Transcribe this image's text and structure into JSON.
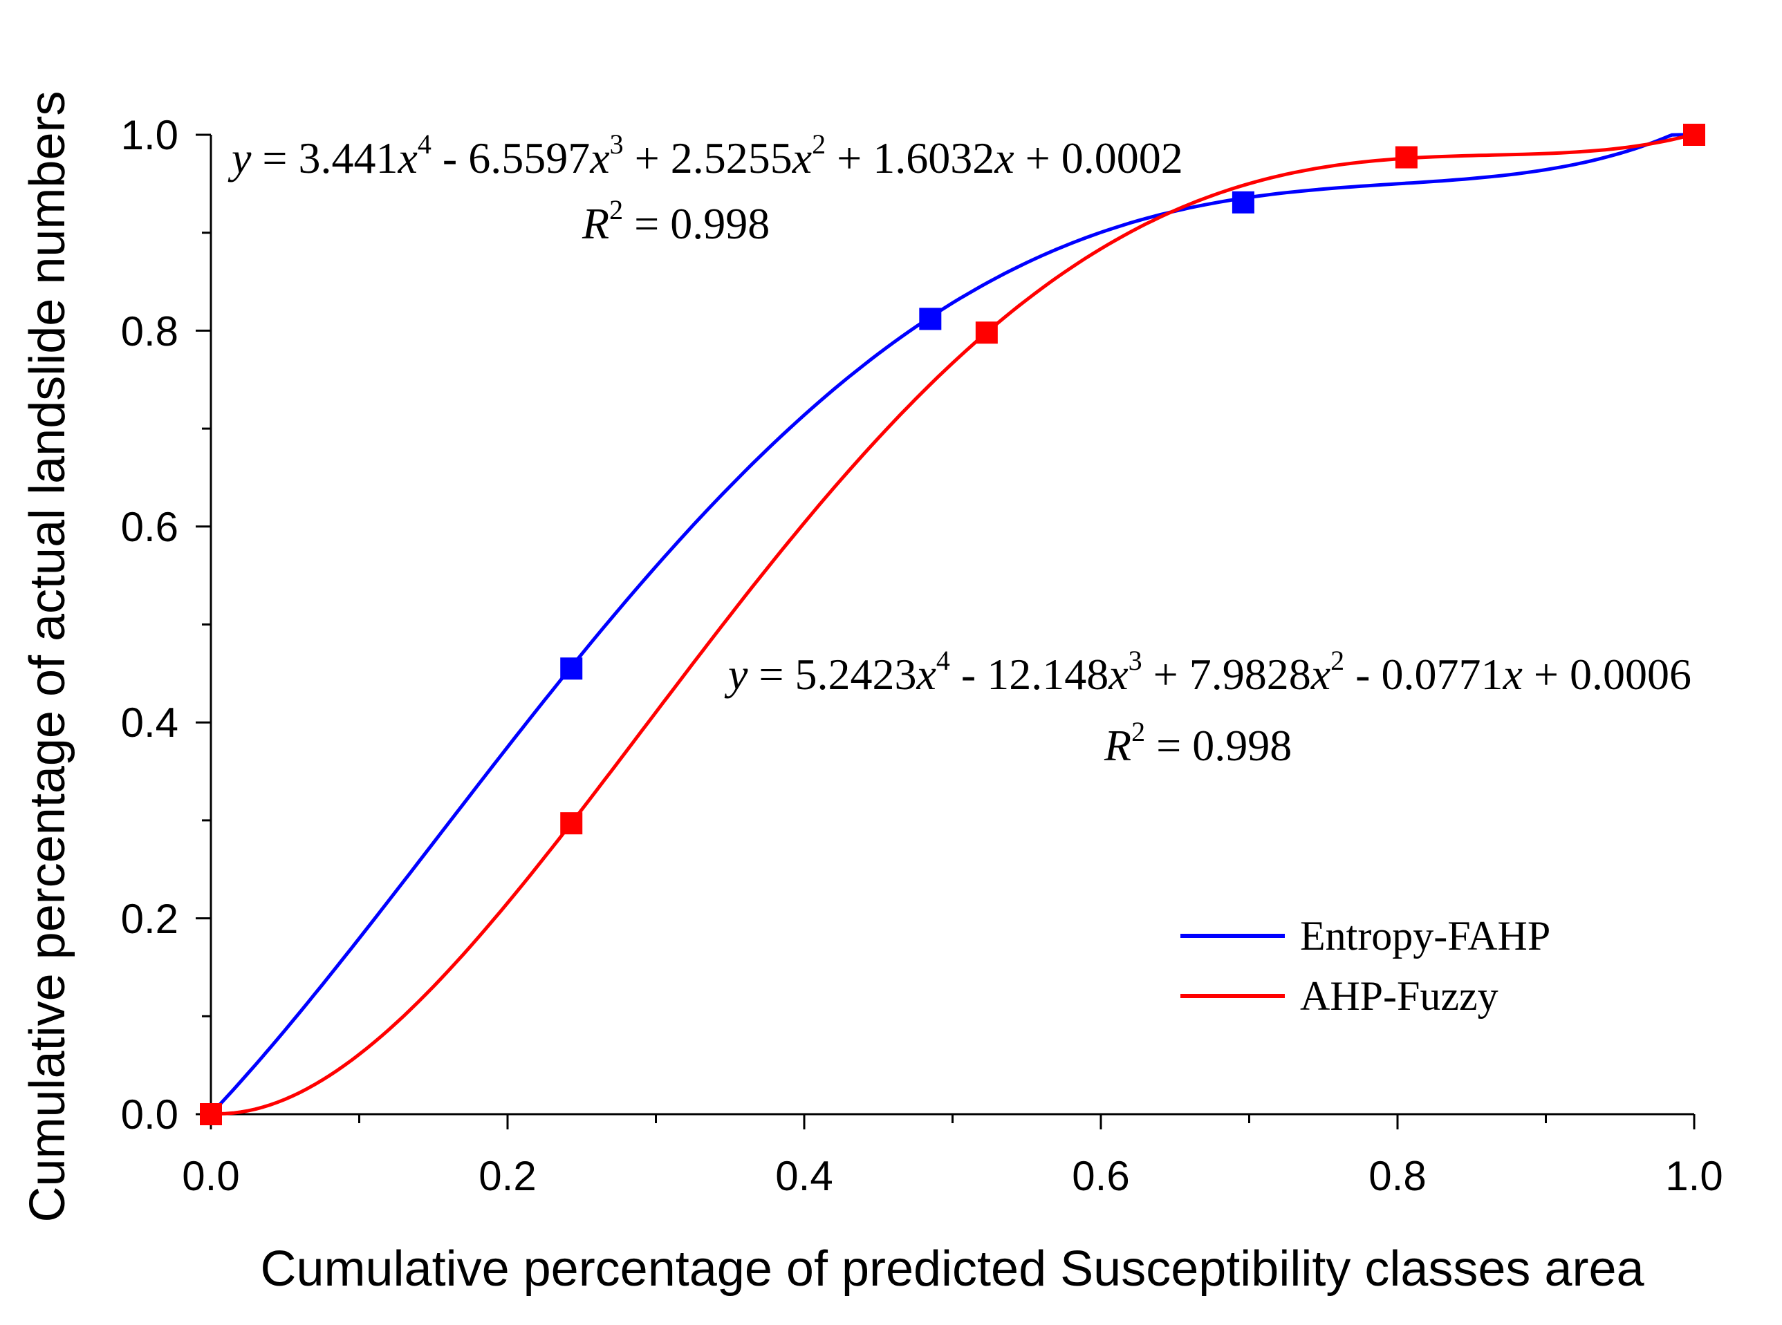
{
  "chart_data": {
    "type": "line",
    "title": "",
    "xlabel": "Cumulative percentage of predicted Susceptibility classes area",
    "ylabel": "Cumulative percentage of actual landslide numbers",
    "xlim": [
      0,
      1
    ],
    "ylim": [
      0,
      1
    ],
    "x_ticks": [
      "0.0",
      "0.2",
      "0.4",
      "0.6",
      "0.8",
      "1.0"
    ],
    "y_ticks": [
      "0.0",
      "0.2",
      "0.4",
      "0.6",
      "0.8",
      "1.0"
    ],
    "grid": false,
    "legend_position": "bottom-right",
    "series": [
      {
        "name": "Entropy-FAHP",
        "color": "#0000ff",
        "coefficients": [
          0.0002,
          1.6032,
          2.5255,
          -6.5597,
          3.441
        ],
        "points": [
          [
            0.0,
            0.0
          ],
          [
            0.243,
            0.455
          ],
          [
            0.485,
            0.812
          ],
          [
            0.696,
            0.931
          ],
          [
            1.0,
            1.0
          ]
        ],
        "equation": {
          "prefix": "y",
          "eq_a": " = 3.441",
          "eq_b": " - 6.5597",
          "eq_c": " + 2.5255",
          "eq_d": " + 1.6032",
          "eq_e": " + 0.0002",
          "var": "x",
          "p4": "4",
          "p3": "3",
          "p2": "2",
          "r_label": "R",
          "r_pow": "2",
          "r_value": " = 0.998"
        }
      },
      {
        "name": "AHP-Fuzzy",
        "color": "#ff0000",
        "coefficients": [
          0.0006,
          -0.0771,
          7.9828,
          -12.148,
          5.2423
        ],
        "points": [
          [
            0.0,
            0.0
          ],
          [
            0.243,
            0.297
          ],
          [
            0.523,
            0.798
          ],
          [
            0.806,
            0.977
          ],
          [
            1.0,
            1.0
          ]
        ],
        "equation": {
          "prefix": "y",
          "eq_a": " = 5.2423",
          "eq_b": " - 12.148",
          "eq_c": " + 7.9828",
          "eq_d": " - 0.0771",
          "eq_e": " + 0.0006",
          "var": "x",
          "p4": "4",
          "p3": "3",
          "p2": "2",
          "r_label": "R",
          "r_pow": "2",
          "r_value": " = 0.998"
        }
      }
    ]
  }
}
